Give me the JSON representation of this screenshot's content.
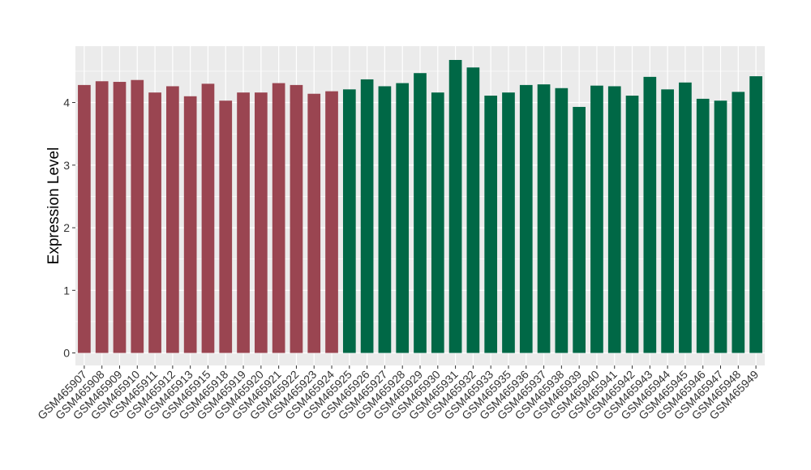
{
  "chart_data": {
    "type": "bar",
    "title": "",
    "xlabel": "",
    "ylabel": "Expression Level",
    "ylim": [
      -0.2,
      4.9
    ],
    "yticks": [
      0,
      1,
      2,
      3,
      4
    ],
    "grid": true,
    "legend": "none",
    "colors": {
      "group_a": "#9A4551",
      "group_b": "#006846",
      "panel_bg": "#EBEBEB",
      "grid": "#FFFFFF"
    },
    "categories": [
      "GSM465907",
      "GSM465908",
      "GSM465909",
      "GSM465910",
      "GSM465911",
      "GSM465912",
      "GSM465913",
      "GSM465915",
      "GSM465918",
      "GSM465919",
      "GSM465920",
      "GSM465921",
      "GSM465922",
      "GSM465923",
      "GSM465924",
      "GSM465925",
      "GSM465926",
      "GSM465927",
      "GSM465928",
      "GSM465929",
      "GSM465930",
      "GSM465931",
      "GSM465932",
      "GSM465933",
      "GSM465935",
      "GSM465936",
      "GSM465937",
      "GSM465938",
      "GSM465939",
      "GSM465940",
      "GSM465941",
      "GSM465942",
      "GSM465943",
      "GSM465944",
      "GSM465945",
      "GSM465946",
      "GSM465947",
      "GSM465948",
      "GSM465949"
    ],
    "values": [
      4.28,
      4.34,
      4.33,
      4.36,
      4.16,
      4.26,
      4.1,
      4.3,
      4.03,
      4.16,
      4.16,
      4.31,
      4.28,
      4.14,
      4.18,
      4.21,
      4.37,
      4.26,
      4.31,
      4.47,
      4.16,
      4.68,
      4.56,
      4.11,
      4.16,
      4.28,
      4.29,
      4.23,
      3.93,
      4.27,
      4.26,
      4.11,
      4.41,
      4.21,
      4.32,
      4.06,
      4.03,
      4.17,
      4.42
    ],
    "groups": [
      "a",
      "a",
      "a",
      "a",
      "a",
      "a",
      "a",
      "a",
      "a",
      "a",
      "a",
      "a",
      "a",
      "a",
      "a",
      "b",
      "b",
      "b",
      "b",
      "b",
      "b",
      "b",
      "b",
      "b",
      "b",
      "b",
      "b",
      "b",
      "b",
      "b",
      "b",
      "b",
      "b",
      "b",
      "b",
      "b",
      "b",
      "b",
      "b"
    ]
  }
}
